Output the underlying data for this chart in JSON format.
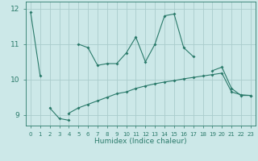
{
  "x": [
    0,
    1,
    2,
    3,
    4,
    5,
    6,
    7,
    8,
    9,
    10,
    11,
    12,
    13,
    14,
    15,
    16,
    17,
    18,
    19,
    20,
    21,
    22,
    23
  ],
  "line1": [
    11.9,
    10.1,
    null,
    null,
    null,
    11.0,
    10.9,
    10.4,
    10.45,
    10.45,
    10.75,
    11.2,
    10.5,
    11.0,
    11.8,
    11.85,
    10.9,
    10.65,
    null,
    10.25,
    10.35,
    9.75,
    9.55,
    9.55
  ],
  "line2": [
    null,
    null,
    9.2,
    8.9,
    8.85,
    null,
    null,
    null,
    null,
    null,
    null,
    null,
    null,
    null,
    null,
    null,
    null,
    null,
    null,
    null,
    null,
    null,
    null,
    null
  ],
  "line3": [
    null,
    null,
    null,
    null,
    9.05,
    9.2,
    9.3,
    9.4,
    9.5,
    9.6,
    9.65,
    9.75,
    9.82,
    9.88,
    9.93,
    9.97,
    10.02,
    10.06,
    10.1,
    10.14,
    10.18,
    9.65,
    9.57,
    9.55
  ],
  "background_color": "#cce8e8",
  "grid_color": "#aacccc",
  "line_color": "#2a7a6a",
  "ylim": [
    8.7,
    12.2
  ],
  "yticks": [
    9,
    10,
    11,
    12
  ],
  "xlim": [
    -0.5,
    23.5
  ],
  "xlabel": "Humidex (Indice chaleur)",
  "figsize": [
    3.2,
    2.0
  ],
  "dpi": 100
}
